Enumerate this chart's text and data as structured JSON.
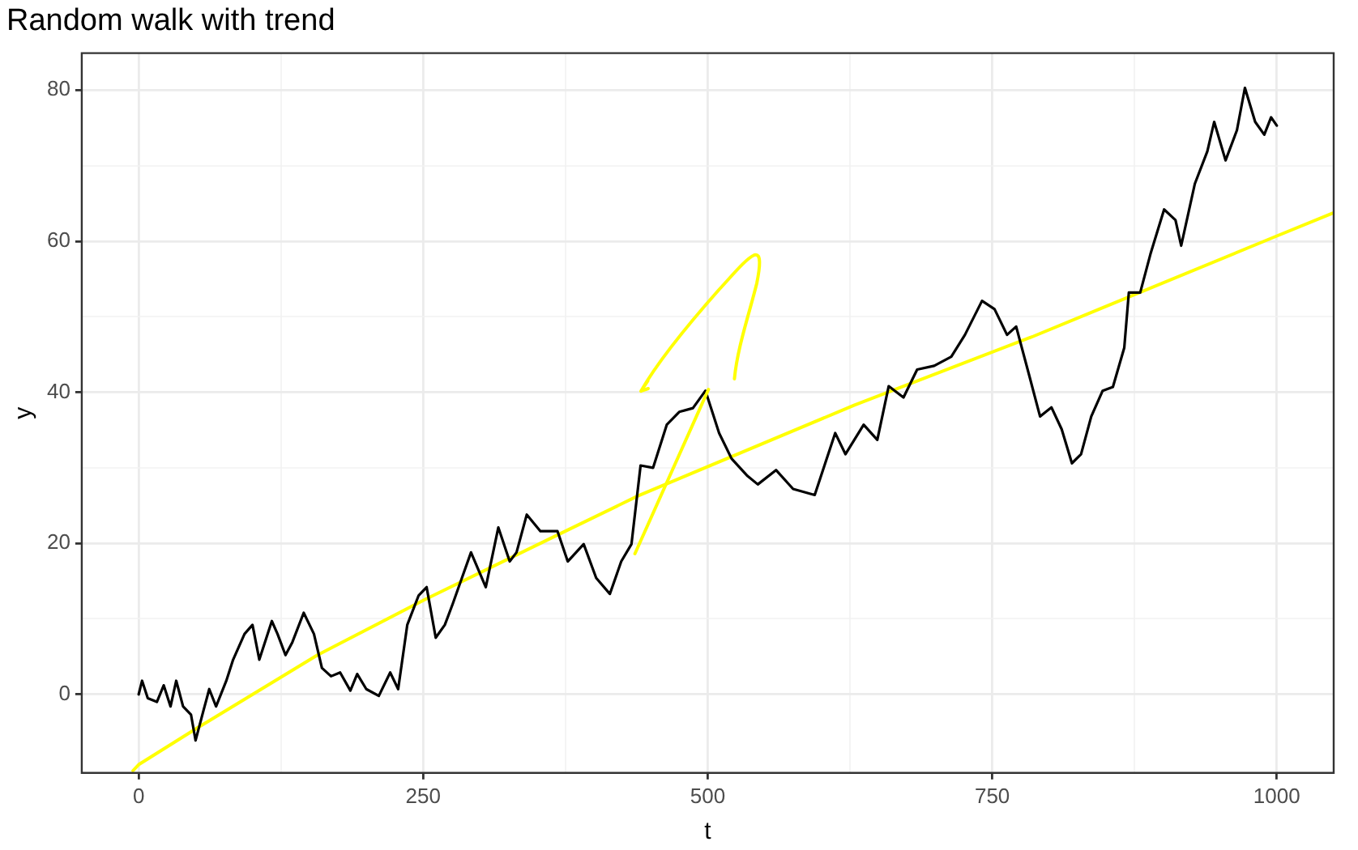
{
  "chart_data": {
    "type": "line",
    "title": "Random walk with trend",
    "xlabel": "t",
    "ylabel": "y",
    "xlim": [
      -50,
      1050
    ],
    "ylim": [
      -10.4,
      84.9
    ],
    "xticks": [
      0,
      {
        "value": 125,
        "label": null
      },
      250,
      {
        "value": 375,
        "label": null
      },
      500,
      {
        "value": 625,
        "label": null
      },
      750,
      {
        "value": 875,
        "label": null
      },
      1000
    ],
    "yticks": [
      0,
      {
        "value": 10,
        "label": null
      },
      20,
      {
        "value": 30,
        "label": null
      },
      40,
      {
        "value": 50,
        "label": null
      },
      60,
      {
        "value": 70,
        "label": null
      },
      80
    ],
    "grid": true,
    "legend": false,
    "marker": "none",
    "line_style": "solid",
    "series": [
      {
        "color": "#000000",
        "x": [
          0,
          3,
          8,
          16,
          22,
          28,
          33,
          39,
          46,
          50,
          57,
          62,
          68,
          77,
          83,
          93,
          100,
          106,
          117,
          122,
          129,
          135,
          145,
          154,
          161,
          169,
          177,
          186,
          192,
          200,
          211,
          221,
          228,
          236,
          246,
          253,
          261,
          269,
          276,
          284,
          292,
          305,
          316,
          326,
          332,
          341,
          353,
          368,
          377,
          391,
          402,
          414,
          424,
          433,
          441,
          452,
          464,
          475,
          487,
          498,
          510,
          521,
          535,
          544,
          560,
          575,
          594,
          612,
          621,
          637,
          649,
          659,
          672,
          684,
          699,
          714,
          726,
          741,
          752,
          763,
          771,
          782,
          792,
          802,
          811,
          820,
          828,
          837,
          847,
          856,
          866,
          870,
          880,
          889,
          901,
          911,
          916,
          928,
          939,
          945,
          955,
          965,
          972,
          981,
          989,
          995,
          1000
        ],
        "values": [
          0,
          1.8,
          -0.5,
          -1,
          1.2,
          -1.6,
          1.8,
          -1.6,
          -2.7,
          -6.1,
          -2.1,
          0.7,
          -1.6,
          1.8,
          4.6,
          8,
          9.2,
          4.6,
          9.7,
          8,
          5.2,
          6.9,
          10.8,
          8,
          3.5,
          2.4,
          2.9,
          0.5,
          2.7,
          0.7,
          -0.2,
          2.9,
          0.7,
          9.2,
          13.1,
          14.2,
          7.5,
          9.2,
          12,
          15.4,
          18.8,
          14.2,
          22.1,
          17.6,
          18.8,
          23.8,
          21.6,
          21.6,
          17.6,
          19.9,
          15.4,
          13.3,
          17.6,
          19.9,
          30.3,
          30,
          35.7,
          37.4,
          37.9,
          40.2,
          34.6,
          31.2,
          28.9,
          27.8,
          29.7,
          27.2,
          26.4,
          34.6,
          31.8,
          35.7,
          33.7,
          40.8,
          39.3,
          43,
          43.5,
          44.7,
          47.6,
          52.1,
          51,
          47.6,
          48.7,
          42.5,
          36.8,
          38,
          35.1,
          30.6,
          31.8,
          36.8,
          40.2,
          40.7,
          45.9,
          53.2,
          53.2,
          58.3,
          64.2,
          62.8,
          59.4,
          67.6,
          71.9,
          75.8,
          70.7,
          74.7,
          80.3,
          75.8,
          74.1,
          76.4,
          75.3
        ]
      },
      {
        "color": "#ffff00",
        "x": [
          -5,
          0,
          52,
          157,
          252,
          372,
          439,
          629,
          786,
          844,
          997,
          1049
        ],
        "values": [
          -10.1,
          -9.3,
          -4.4,
          5.2,
          12.6,
          21.4,
          26.3,
          38.3,
          47.4,
          51,
          60.5,
          63.7
        ]
      }
    ]
  }
}
